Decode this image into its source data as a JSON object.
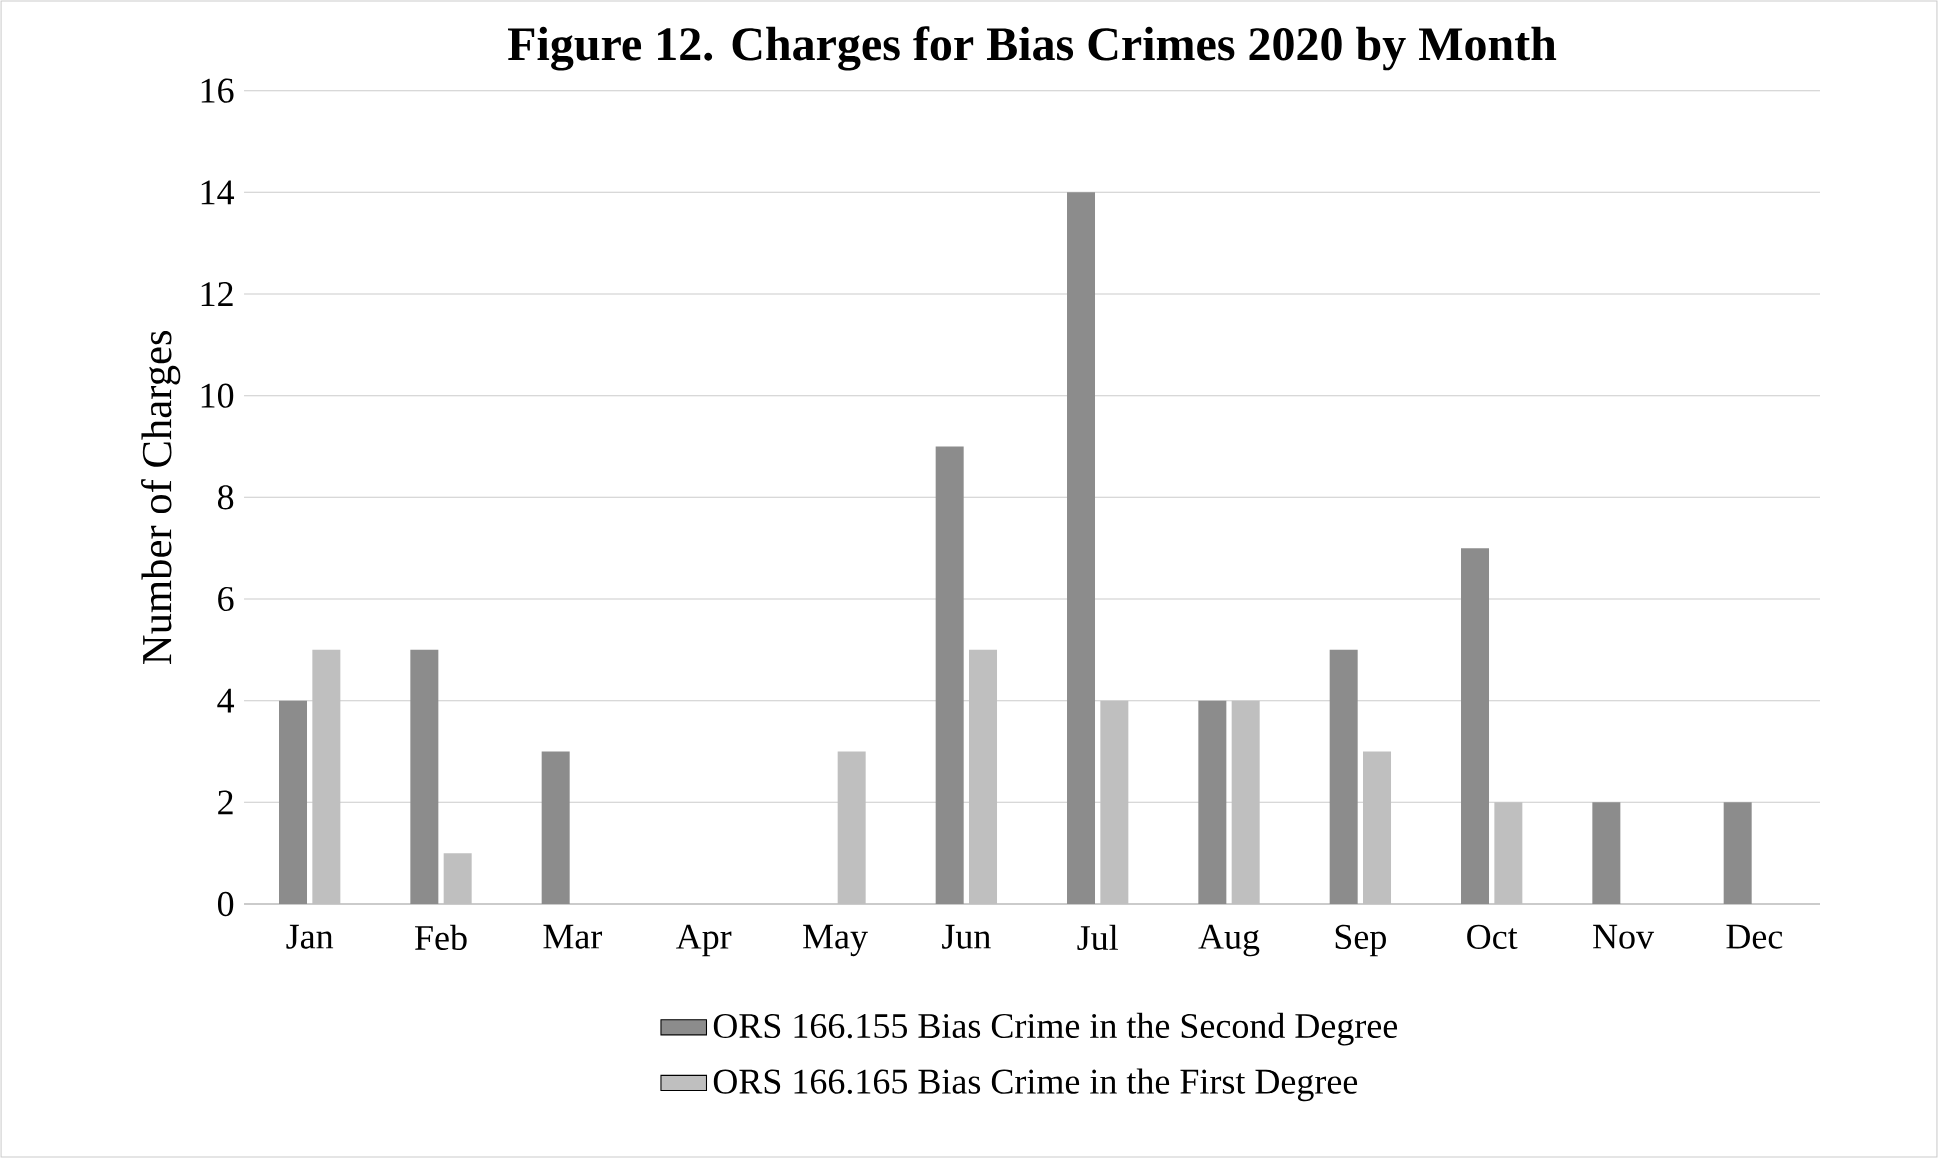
{
  "chart_data": {
    "type": "bar",
    "title": "Figure 12. Charges for Bias Crimes 2020 by Month",
    "ylabel": "Number of Charges",
    "categories": [
      "Jan",
      "Feb",
      "Mar",
      "Apr",
      "May",
      "Jun",
      "Jul",
      "Aug",
      "Sep",
      "Oct",
      "Nov",
      "Dec"
    ],
    "series": [
      {
        "name": "ORS 166.155 Bias Crime in the Second Degree",
        "color": "#8c8c8c",
        "values": [
          4,
          5,
          3,
          0,
          0,
          9,
          14,
          4,
          5,
          7,
          2,
          2
        ]
      },
      {
        "name": "ORS 166.165 Bias Crime in the First Degree",
        "color": "#bfbfbf",
        "values": [
          5,
          1,
          0,
          0,
          3,
          5,
          4,
          4,
          3,
          2,
          0,
          0
        ]
      }
    ],
    "ylim": [
      0,
      16
    ],
    "yticks": [
      0,
      2,
      4,
      6,
      8,
      10,
      12,
      14,
      16
    ],
    "grid": "y",
    "legend": "bottom"
  }
}
